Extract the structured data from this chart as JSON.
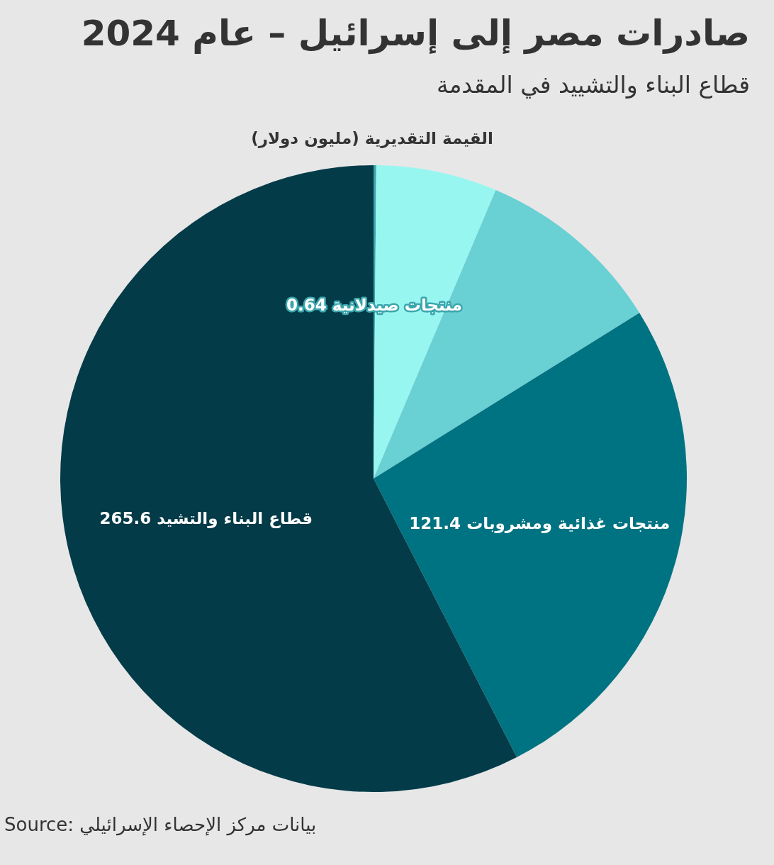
{
  "chart_data": {
    "type": "pie",
    "title": "صادرات مصر إلى إسرائيل – عام 2024",
    "subtitle": "قطاع البناء والتشييد في المقدمة",
    "categories": [
      "منتجات صيدلانية",
      null,
      null,
      "منتجات غذائية ومشروبات",
      "قطاع البناء والتشيد"
    ],
    "values": [
      0.64,
      28.8,
      45,
      121.4,
      265.6
    ],
    "colors": [
      "#3aa6ad",
      "#98f6f0",
      "#69d0d3",
      "#007382",
      "#033b48"
    ],
    "value_labels": [
      "0.64",
      null,
      null,
      "121.4",
      "265.6"
    ],
    "annotations": [
      "القيمة التقديرية (مليون دولار)",
      "Source: بيانات مركز الإحصاء الإسرائيلي"
    ]
  }
}
